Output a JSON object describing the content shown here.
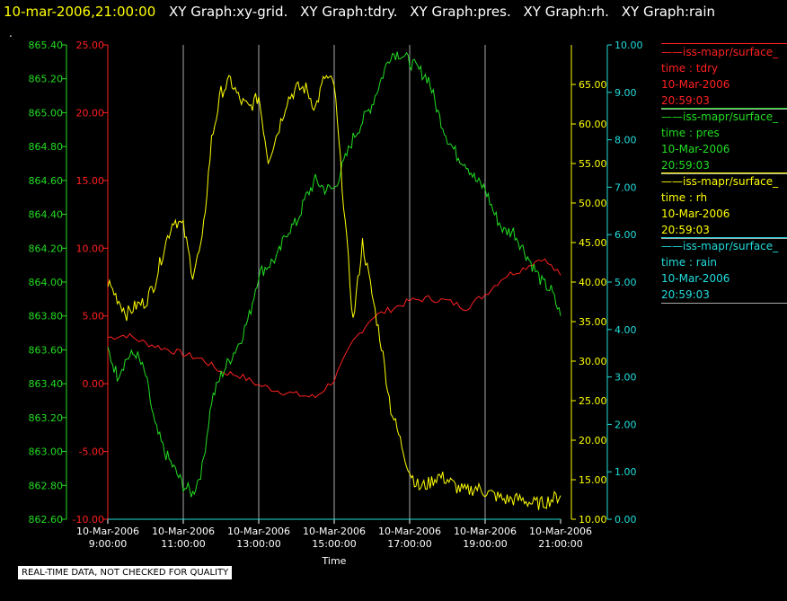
{
  "header": {
    "timestamp": "10-mar-2006,21:00:00",
    "titles": [
      "XY Graph:xy-grid.",
      "XY Graph:tdry.",
      "XY Graph:pres.",
      "XY Graph:rh.",
      "XY Graph:rain"
    ]
  },
  "dot": ".",
  "footer": "REAL-TIME DATA, NOT CHECKED FOR QUALITY",
  "colors": {
    "tdry": "#ff2020",
    "pres": "#22dd22",
    "rh": "#ffff00",
    "rain": "#22dddd",
    "grid": "#aaaaaa"
  },
  "legend": [
    {
      "name": "iss-mapr/surface_",
      "var": "time : tdry",
      "date": "10-Mar-2006",
      "time": "20:59:03",
      "color": "#ff2020"
    },
    {
      "name": "iss-mapr/surface_",
      "var": "time : pres",
      "date": "10-Mar-2006",
      "time": "20:59:03",
      "color": "#22dd22"
    },
    {
      "name": "iss-mapr/surface_",
      "var": "time : rh",
      "date": "10-Mar-2006",
      "time": "20:59:03",
      "color": "#ffff00"
    },
    {
      "name": "iss-mapr/surface_",
      "var": "time : rain",
      "date": "10-Mar-2006",
      "time": "20:59:03",
      "color": "#22dddd"
    }
  ],
  "chart_data": {
    "type": "line",
    "xlabel": "Time",
    "x_ticks": [
      {
        "date": "10-Mar-2006",
        "time": "9:00:00"
      },
      {
        "date": "10-Mar-2006",
        "time": "11:00:00"
      },
      {
        "date": "10-Mar-2006",
        "time": "13:00:00"
      },
      {
        "date": "10-Mar-2006",
        "time": "15:00:00"
      },
      {
        "date": "10-Mar-2006",
        "time": "17:00:00"
      },
      {
        "date": "10-Mar-2006",
        "time": "19:00:00"
      },
      {
        "date": "10-Mar-2006",
        "time": "21:00:00"
      }
    ],
    "xlim": [
      "09:00",
      "21:00"
    ],
    "grid": "vertical",
    "axes": {
      "pres": {
        "side": "left-outer",
        "ylim": [
          862.6,
          865.4
        ],
        "ticks": [
          "862.60",
          "862.80",
          "863.00",
          "863.20",
          "863.40",
          "863.60",
          "863.80",
          "864.00",
          "864.20",
          "864.40",
          "864.60",
          "864.80",
          "865.00",
          "865.20",
          "865.40"
        ]
      },
      "tdry": {
        "side": "left-inner",
        "ylim": [
          -10,
          25
        ],
        "ticks": [
          "-10.00",
          "-5.00",
          "0.00",
          "5.00",
          "10.00",
          "15.00",
          "20.00",
          "25.00"
        ]
      },
      "rh": {
        "side": "right-inner",
        "ylim": [
          10,
          70
        ],
        "ticks": [
          "10.00",
          "15.00",
          "20.00",
          "25.00",
          "30.00",
          "35.00",
          "40.00",
          "45.00",
          "50.00",
          "55.00",
          "60.00",
          "65.00"
        ]
      },
      "rain": {
        "side": "right-outer",
        "ylim": [
          0,
          10
        ],
        "ticks": [
          "0.00",
          "1.00",
          "2.00",
          "3.00",
          "4.00",
          "5.00",
          "6.00",
          "7.00",
          "8.00",
          "9.00",
          "10.00"
        ]
      }
    },
    "series": [
      {
        "key": "tdry",
        "x": [
          "09:00",
          "09:30",
          "10:00",
          "10:30",
          "11:00",
          "11:30",
          "12:00",
          "12:30",
          "13:00",
          "13:30",
          "14:00",
          "14:30",
          "15:00",
          "15:30",
          "16:00",
          "16:30",
          "17:00",
          "17:30",
          "18:00",
          "18:30",
          "19:00",
          "19:30",
          "20:00",
          "20:30",
          "21:00"
        ],
        "y": [
          3.4,
          3.6,
          3.0,
          2.6,
          2.2,
          1.8,
          0.9,
          0.6,
          -0.1,
          -0.5,
          -0.8,
          -1.0,
          0.3,
          3.1,
          4.9,
          5.5,
          6.1,
          6.3,
          6.1,
          5.6,
          6.6,
          7.9,
          8.5,
          9.3,
          8.0
        ]
      },
      {
        "key": "pres",
        "x": [
          "09:00",
          "09:15",
          "09:30",
          "09:45",
          "10:00",
          "10:15",
          "10:30",
          "10:45",
          "11:00",
          "11:15",
          "11:30",
          "11:45",
          "12:00",
          "12:15",
          "12:30",
          "12:45",
          "13:00",
          "13:15",
          "13:30",
          "13:45",
          "14:00",
          "14:15",
          "14:30",
          "14:45",
          "15:00",
          "15:15",
          "15:30",
          "15:45",
          "16:00",
          "16:15",
          "16:30",
          "16:45",
          "17:00",
          "17:15",
          "17:30",
          "17:45",
          "18:00",
          "18:15",
          "18:30",
          "18:45",
          "19:00",
          "19:15",
          "19:30",
          "19:45",
          "20:00",
          "20:15",
          "20:30",
          "20:45",
          "21:00"
        ],
        "y": [
          863.6,
          863.45,
          863.55,
          863.58,
          863.45,
          863.15,
          863.0,
          862.9,
          862.8,
          862.75,
          862.9,
          863.3,
          863.45,
          863.55,
          863.65,
          863.8,
          864.05,
          864.1,
          864.15,
          864.3,
          864.35,
          864.5,
          864.6,
          864.55,
          864.55,
          864.7,
          864.85,
          864.95,
          865.05,
          865.2,
          865.35,
          865.35,
          865.3,
          865.25,
          865.2,
          865.0,
          864.85,
          864.75,
          864.7,
          864.6,
          864.55,
          864.4,
          864.3,
          864.3,
          864.2,
          864.1,
          864.0,
          863.95,
          863.8
        ]
      },
      {
        "key": "rh",
        "x": [
          "09:00",
          "09:15",
          "09:30",
          "09:45",
          "10:00",
          "10:15",
          "10:30",
          "10:45",
          "11:00",
          "11:15",
          "11:30",
          "11:45",
          "12:00",
          "12:15",
          "12:30",
          "12:45",
          "13:00",
          "13:15",
          "13:30",
          "13:45",
          "14:00",
          "14:15",
          "14:30",
          "14:45",
          "15:00",
          "15:15",
          "15:30",
          "15:45",
          "16:00",
          "16:15",
          "16:30",
          "16:45",
          "17:00",
          "17:15",
          "17:30",
          "17:45",
          "18:00",
          "18:15",
          "18:30",
          "18:45",
          "19:00",
          "19:15",
          "19:30",
          "19:45",
          "20:00",
          "20:15",
          "20:30",
          "20:45",
          "21:00"
        ],
        "y": [
          40.0,
          38.0,
          36.0,
          37.0,
          37.5,
          40.0,
          44.5,
          48.0,
          47.0,
          41.0,
          45.0,
          58.0,
          64.0,
          65.5,
          63.0,
          62.0,
          63.5,
          55.5,
          59.0,
          63.0,
          64.5,
          64.5,
          62.0,
          66.0,
          65.0,
          50.0,
          35.0,
          45.0,
          38.5,
          32.0,
          24.0,
          20.0,
          16.0,
          14.0,
          14.5,
          15.5,
          15.0,
          14.0,
          13.5,
          14.0,
          13.5,
          13.0,
          12.5,
          12.5,
          12.5,
          12.0,
          12.0,
          12.5,
          13.0
        ]
      },
      {
        "key": "rain",
        "x": [
          "09:00",
          "21:00"
        ],
        "y": [
          0.0,
          0.0
        ]
      }
    ]
  }
}
